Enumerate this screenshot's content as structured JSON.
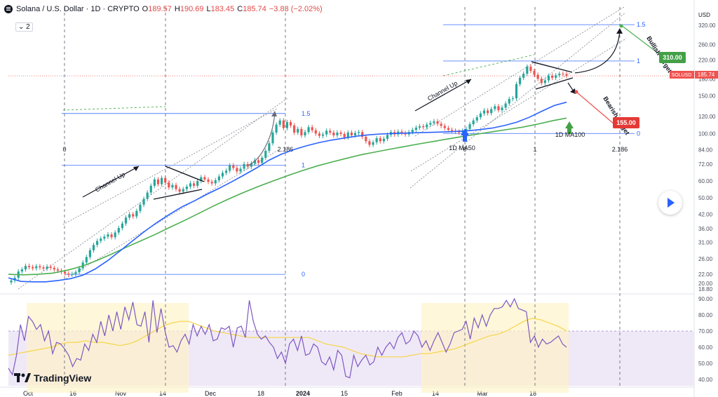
{
  "header": {
    "title": "Solana / U.S. Dollar · 1D · CRYPTO",
    "open_label": "O",
    "open": "189.57",
    "high_label": "H",
    "high": "190.69",
    "low_label": "L",
    "low": "183.45",
    "close_label": "C",
    "close": "185.74",
    "change": "−3.83 (−2.02%)"
  },
  "collapse_badge": "2",
  "brand": "TradingView",
  "colors": {
    "up": "#26a69a",
    "down": "#ef5350",
    "ma50": "#2962ff",
    "ma100": "#4caf50",
    "rsi": "#7e57c2",
    "rsi_ma": "#f5d547",
    "fib": "#2962ff"
  },
  "chart_data": [
    {
      "type": "candlestick",
      "symbol": "SOLUSD",
      "y_axis_label": "USD",
      "y_scale": "log",
      "y_ticks": [
        18.8,
        20.0,
        22.0,
        26.0,
        31.0,
        36.0,
        42.0,
        50.0,
        60.0,
        72.0,
        84.0,
        100.0,
        120.0,
        150.0,
        180.0,
        220.0,
        260.0,
        320.0
      ],
      "last_price_label": "SOLUSD",
      "last_price": "185.74",
      "x_tick_labels": [
        "Oct",
        "16",
        "Nov",
        "14",
        "Dec",
        "18",
        "2024",
        "15",
        "Feb",
        "14",
        "Mar",
        "18"
      ],
      "closes": [
        20.6,
        21.2,
        22.7,
        23.2,
        24.1,
        23.8,
        23.5,
        24.0,
        23.7,
        23.4,
        23.9,
        23.6,
        23.2,
        22.9,
        22.6,
        22.2,
        22.0,
        22.1,
        22.5,
        23.5,
        25.0,
        26.5,
        28.5,
        30.2,
        31.5,
        32.3,
        33.0,
        33.8,
        32.8,
        34.5,
        36.2,
        38.0,
        40.5,
        42.0,
        41.0,
        43.5,
        46.5,
        49.5,
        53.0,
        57.0,
        61.0,
        58.0,
        62.0,
        59.0,
        56.0,
        57.5,
        55.0,
        53.5,
        55.0,
        56.5,
        58.5,
        57.0,
        60.0,
        62.5,
        61.0,
        59.5,
        58.5,
        60.5,
        63.0,
        65.5,
        67.0,
        71.0,
        69.0,
        66.5,
        68.5,
        72.0,
        70.0,
        72.5,
        75.0,
        73.0,
        77.0,
        83.0,
        90.0,
        101.0,
        110.0,
        115.0,
        106.0,
        113.0,
        109.0,
        101.0,
        105.0,
        98.0,
        101.5,
        107.0,
        103.5,
        100.0,
        97.5,
        99.0,
        103.0,
        101.0,
        98.0,
        101.0,
        99.5,
        96.0,
        101.0,
        98.0,
        100.5,
        101.5,
        96.5,
        92.0,
        88.5,
        91.0,
        95.0,
        92.0,
        94.5,
        98.5,
        101.5,
        99.0,
        102.0,
        100.5,
        99.0,
        101.5,
        104.0,
        106.5,
        108.0,
        107.0,
        110.0,
        112.0,
        114.0,
        111.0,
        108.5,
        106.0,
        104.0,
        103.0,
        102.0,
        101.0,
        103.0,
        105.0,
        110.5,
        115.0,
        119.0,
        124.0,
        128.0,
        124.5,
        130.0,
        134.0,
        128.5,
        132.0,
        138.0,
        145.0,
        146.0,
        170.0,
        182.0,
        190.0,
        205.0,
        196.0,
        188.0,
        180.0,
        172.0,
        177.0,
        186.0,
        182.0,
        187.0,
        190.0,
        189.57,
        185.74
      ],
      "ma50": [
        21.2,
        20.4,
        20.3,
        20.3,
        20.6,
        21.0,
        21.8,
        23.3,
        25.5,
        28.3,
        31.5,
        35.0,
        38.5,
        42.0,
        45.5,
        48.5,
        52.0,
        55.5,
        59.5,
        64.0,
        69.0,
        75.0,
        80.0,
        84.0,
        87.5,
        90.5,
        93.0,
        95.0,
        97.0,
        98.5,
        99.5,
        100.0,
        100.4,
        100.8,
        101.2,
        101.6,
        102.2,
        103.0,
        104.2,
        106.0,
        109.0,
        113.0,
        119.0,
        127.0,
        135.0,
        140.0
      ],
      "ma100": [
        22.0,
        21.9,
        22.0,
        22.3,
        23.0,
        24.0,
        25.5,
        27.3,
        29.4,
        31.5,
        33.8,
        36.5,
        39.3,
        42.5,
        46.0,
        49.5,
        53.0,
        56.5,
        60.0,
        63.5,
        67.0,
        70.5,
        73.5,
        76.5,
        79.5,
        82.0,
        84.5,
        87.0,
        89.5,
        92.0,
        94.5,
        97.0,
        99.5,
        102.0,
        104.5,
        107.0,
        110.5,
        114.5,
        118.0
      ],
      "fib_levels_left": [
        "0",
        "1",
        "1.5",
        "0",
        "2.186"
      ],
      "fib_levels_right": [
        "0",
        "1",
        "1.5",
        "0",
        "1",
        "2.186"
      ],
      "annotations": [
        "Channel Up",
        "Channel Up",
        "1D MA50",
        "1D MA100",
        "Bullish Target",
        "Bearish Target"
      ],
      "targets": [
        {
          "label": "Bullish Target",
          "value": "310.00"
        },
        {
          "label": "Bearish Target",
          "value": "155.00"
        }
      ]
    },
    {
      "type": "line",
      "name": "RSI",
      "y_ticks": [
        40.0,
        50.0,
        60.0,
        70.0,
        80.0,
        90.0
      ],
      "ylim": [
        36,
        92
      ],
      "band": [
        30,
        70
      ],
      "rsi": [
        47,
        43,
        55,
        74,
        64,
        79,
        76,
        71,
        74,
        64,
        70,
        56,
        63,
        62,
        59,
        55,
        48,
        53,
        52,
        62,
        58,
        68,
        63,
        76,
        67,
        80,
        70,
        82,
        71,
        85,
        77,
        88,
        74,
        73,
        82,
        63,
        89,
        69,
        84,
        70,
        60,
        61,
        57,
        64,
        68,
        62,
        74,
        67,
        73,
        68,
        74,
        64,
        65,
        72,
        71,
        73,
        60,
        72,
        73,
        66,
        89,
        76,
        68,
        65,
        67,
        63,
        60,
        53,
        57,
        50,
        62,
        65,
        58,
        67,
        55,
        56,
        62,
        60,
        51,
        49,
        54,
        46,
        58,
        55,
        42,
        41,
        55,
        48,
        52,
        55,
        49,
        51,
        60,
        55,
        60,
        63,
        59,
        66,
        69,
        62,
        64,
        70,
        67,
        60,
        64,
        58,
        64,
        69,
        63,
        57,
        62,
        69,
        70,
        71,
        76,
        65,
        78,
        72,
        80,
        73,
        80,
        84,
        84,
        85,
        89,
        85,
        90,
        84,
        83,
        82,
        63,
        67,
        60,
        65,
        62,
        63,
        65,
        67,
        62,
        60
      ],
      "rsi_ma": [
        55,
        56,
        57,
        58,
        59,
        60,
        62,
        63,
        63,
        64,
        63,
        63,
        62,
        61,
        62,
        64,
        67,
        70,
        73,
        75,
        76,
        76,
        74,
        72,
        70,
        69,
        68,
        67,
        66,
        66,
        66,
        66,
        66,
        66,
        66,
        66,
        64,
        62,
        61,
        60,
        58,
        56,
        55,
        54,
        54,
        54,
        54,
        55,
        56,
        56,
        57,
        58,
        59,
        61,
        63,
        65,
        67,
        68,
        70,
        73,
        76,
        78,
        77,
        75,
        73,
        70
      ]
    }
  ]
}
